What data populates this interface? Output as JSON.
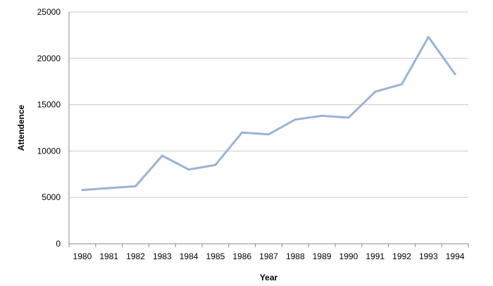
{
  "chart_data": {
    "type": "line",
    "title": "",
    "xlabel": "Year",
    "ylabel": "Attendence",
    "categories": [
      "1980",
      "1981",
      "1982",
      "1983",
      "1984",
      "1985",
      "1986",
      "1987",
      "1988",
      "1989",
      "1990",
      "1991",
      "1992",
      "1993",
      "1994"
    ],
    "series": [
      {
        "values": [
          5800,
          6000,
          6200,
          9500,
          8000,
          8500,
          12000,
          11800,
          13400,
          13800,
          13600,
          16400,
          17200,
          22300,
          18300
        ],
        "color": "#9bb3d6"
      }
    ],
    "ylim": [
      0,
      25000
    ],
    "yticks": [
      0,
      5000,
      10000,
      15000,
      20000,
      25000
    ],
    "grid": true,
    "legend": "none"
  }
}
